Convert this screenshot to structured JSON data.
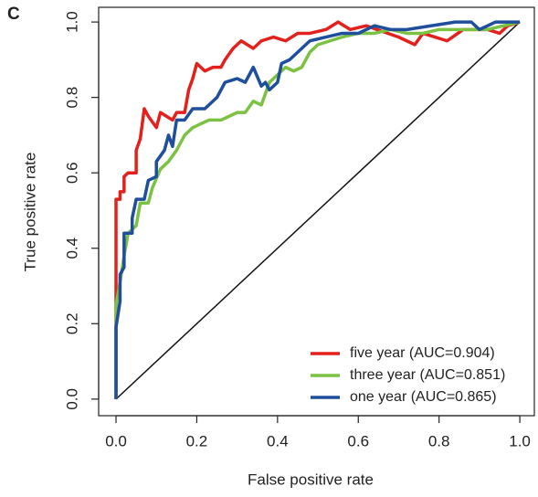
{
  "chart_data": {
    "type": "line",
    "panel_label": "C",
    "x_label": "False positive rate",
    "y_label": "True positive rate",
    "xlim": [
      -0.043,
      1.036
    ],
    "ylim": [
      -0.044,
      1.039
    ],
    "xticks": [
      {
        "value": 0,
        "label": "0.0"
      },
      {
        "value": 0.2,
        "label": "0.2"
      },
      {
        "value": 0.4,
        "label": "0.4"
      },
      {
        "value": 0.6,
        "label": "0.6"
      },
      {
        "value": 0.8,
        "label": "0.8"
      },
      {
        "value": 1,
        "label": "1.0"
      }
    ],
    "yticks": [
      {
        "value": 0,
        "label": "0.0"
      },
      {
        "value": 0.2,
        "label": "0.2"
      },
      {
        "value": 0.4,
        "label": "0.4"
      },
      {
        "value": 0.6,
        "label": "0.6"
      },
      {
        "value": 0.8,
        "label": "0.8"
      },
      {
        "value": 1,
        "label": "1.0"
      }
    ],
    "diagonal": true,
    "legend": "bottom-right",
    "series": [
      {
        "name": "five year (AUC=0.904)",
        "color": "#e3211c",
        "x": [
          0,
          0,
          0,
          0.01,
          0.01,
          0.02,
          0.02,
          0.03,
          0.05,
          0.05,
          0.06,
          0.07,
          0.08,
          0.1,
          0.11,
          0.14,
          0.15,
          0.17,
          0.18,
          0.19,
          0.2,
          0.22,
          0.24,
          0.26,
          0.27,
          0.29,
          0.31,
          0.34,
          0.36,
          0.39,
          0.42,
          0.45,
          0.48,
          0.52,
          0.55,
          0.58,
          0.62,
          0.7,
          0.74,
          0.76,
          0.82,
          0.86,
          0.92,
          0.95,
          0.97,
          1
        ],
        "values": [
          0,
          0.2,
          0.53,
          0.53,
          0.55,
          0.55,
          0.59,
          0.6,
          0.6,
          0.66,
          0.69,
          0.77,
          0.75,
          0.72,
          0.76,
          0.74,
          0.76,
          0.76,
          0.82,
          0.85,
          0.89,
          0.87,
          0.88,
          0.88,
          0.9,
          0.93,
          0.95,
          0.93,
          0.95,
          0.96,
          0.95,
          0.97,
          0.97,
          0.98,
          1,
          0.98,
          0.99,
          0.96,
          0.94,
          0.97,
          0.95,
          0.98,
          0.98,
          0.97,
          0.99,
          1
        ]
      },
      {
        "name": "three year (AUC=0.851)",
        "color": "#7cc242",
        "x": [
          0,
          0,
          0.01,
          0.02,
          0.03,
          0.05,
          0.06,
          0.08,
          0.09,
          0.11,
          0.13,
          0.15,
          0.17,
          0.19,
          0.21,
          0.23,
          0.26,
          0.28,
          0.3,
          0.32,
          0.34,
          0.36,
          0.38,
          0.4,
          0.42,
          0.44,
          0.46,
          0.48,
          0.5,
          0.53,
          0.56,
          0.6,
          0.64,
          0.68,
          0.72,
          0.76,
          0.8,
          0.86,
          0.92,
          0.96,
          1
        ],
        "values": [
          0,
          0.25,
          0.31,
          0.38,
          0.44,
          0.46,
          0.52,
          0.52,
          0.56,
          0.61,
          0.63,
          0.66,
          0.7,
          0.72,
          0.73,
          0.74,
          0.74,
          0.75,
          0.76,
          0.76,
          0.79,
          0.78,
          0.84,
          0.86,
          0.88,
          0.87,
          0.88,
          0.92,
          0.94,
          0.95,
          0.96,
          0.97,
          0.97,
          0.98,
          0.97,
          0.97,
          0.98,
          0.98,
          0.98,
          0.99,
          1
        ]
      },
      {
        "name": "one year (AUC=0.865)",
        "color": "#1f4e9c",
        "x": [
          0,
          0,
          0.01,
          0.01,
          0.02,
          0.02,
          0.04,
          0.04,
          0.05,
          0.07,
          0.08,
          0.1,
          0.1,
          0.12,
          0.13,
          0.14,
          0.15,
          0.17,
          0.19,
          0.22,
          0.25,
          0.27,
          0.3,
          0.32,
          0.34,
          0.36,
          0.37,
          0.38,
          0.4,
          0.41,
          0.43,
          0.46,
          0.48,
          0.52,
          0.56,
          0.6,
          0.64,
          0.68,
          0.72,
          0.78,
          0.84,
          0.88,
          0.9,
          0.94,
          1
        ],
        "values": [
          0,
          0.19,
          0.26,
          0.33,
          0.35,
          0.44,
          0.44,
          0.48,
          0.53,
          0.53,
          0.58,
          0.59,
          0.63,
          0.66,
          0.7,
          0.67,
          0.74,
          0.74,
          0.77,
          0.77,
          0.8,
          0.84,
          0.85,
          0.84,
          0.88,
          0.83,
          0.84,
          0.82,
          0.84,
          0.89,
          0.9,
          0.93,
          0.95,
          0.96,
          0.97,
          0.97,
          0.99,
          0.98,
          0.98,
          0.99,
          1,
          1,
          0.98,
          1,
          1
        ]
      }
    ]
  }
}
